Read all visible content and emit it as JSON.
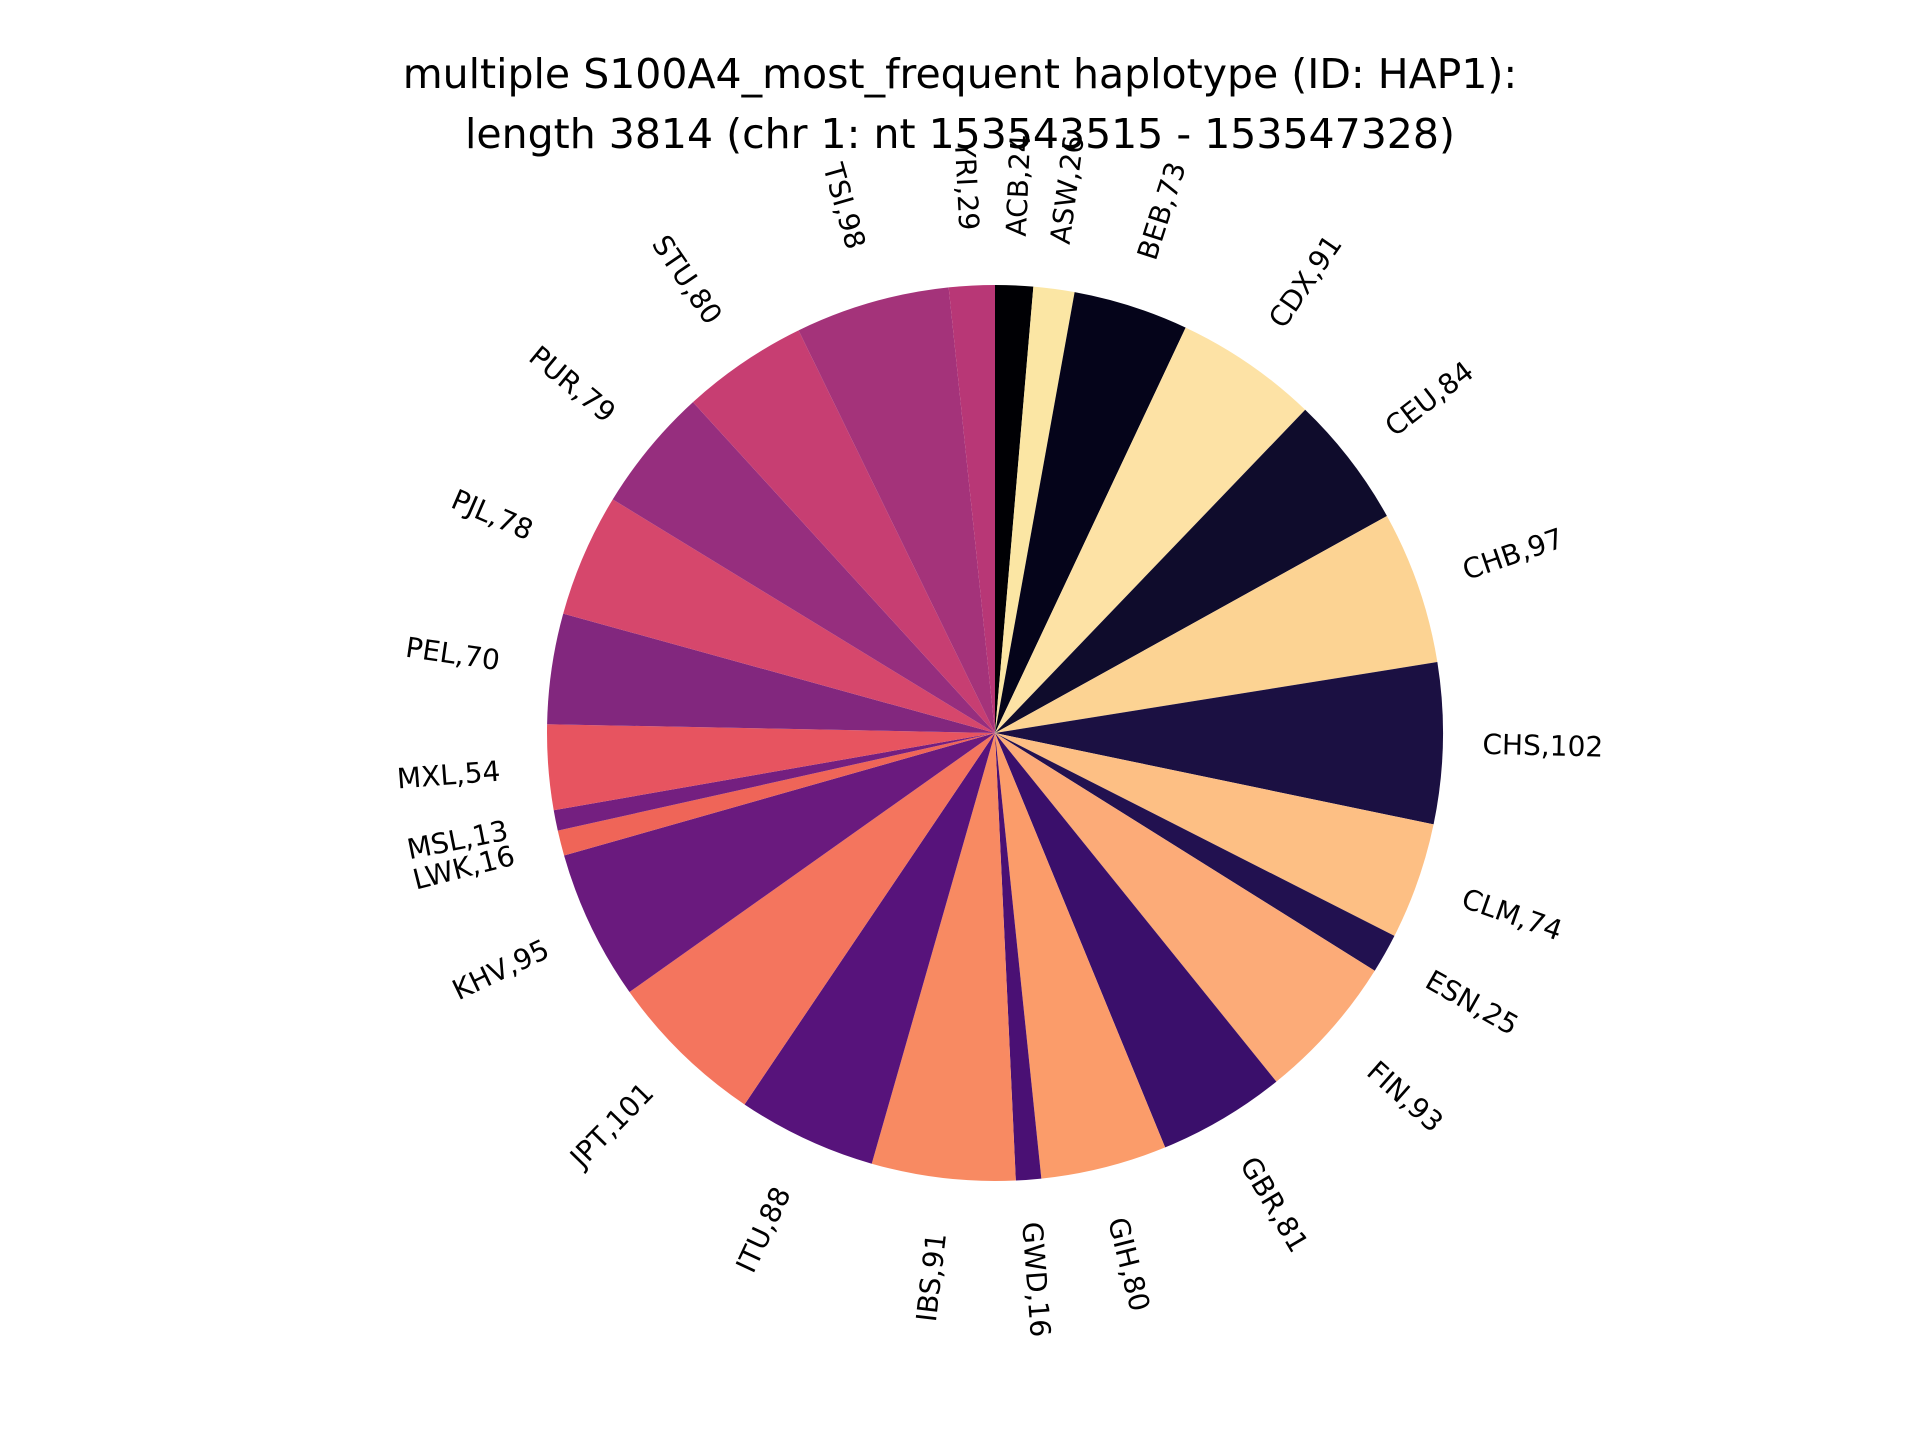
{
  "chart_data": {
    "type": "pie",
    "title_lines": [
      "multiple S100A4_most_frequent haplotype (ID: HAP1):",
      "length 3814 (chr 1: nt 153543515 - 153547328)"
    ],
    "start": "top",
    "direction": "clockwise",
    "slices": [
      {
        "name": "ACB",
        "value": 24,
        "label": "ACB,24",
        "color": "#000004"
      },
      {
        "name": "ASW",
        "value": 26,
        "label": "ASW,26",
        "color": "#fbe6a4"
      },
      {
        "name": "BEB",
        "value": 73,
        "label": "BEB,73",
        "color": "#05041a"
      },
      {
        "name": "CDX",
        "value": 91,
        "label": "CDX,91",
        "color": "#fde2a5"
      },
      {
        "name": "CEU",
        "value": 84,
        "label": "CEU,84",
        "color": "#0f0c2c"
      },
      {
        "name": "CHB",
        "value": 97,
        "label": "CHB,97",
        "color": "#fcd393"
      },
      {
        "name": "CHS",
        "value": 102,
        "label": "CHS,102",
        "color": "#1b1042"
      },
      {
        "name": "CLM",
        "value": 74,
        "label": "CLM,74",
        "color": "#fdbf84"
      },
      {
        "name": "ESN",
        "value": 25,
        "label": "ESN,25",
        "color": "#221150"
      },
      {
        "name": "FIN",
        "value": 93,
        "label": "FIN,93",
        "color": "#fcab78"
      },
      {
        "name": "GBR",
        "value": 81,
        "label": "GBR,81",
        "color": "#3a0f6b"
      },
      {
        "name": "GIH",
        "value": 80,
        "label": "GIH,80",
        "color": "#fb9c6a"
      },
      {
        "name": "GWD",
        "value": 16,
        "label": "GWD,16",
        "color": "#4a1074"
      },
      {
        "name": "IBS",
        "value": 91,
        "label": "IBS,91",
        "color": "#f88a62"
      },
      {
        "name": "ITU",
        "value": 88,
        "label": "ITU,88",
        "color": "#57137b"
      },
      {
        "name": "JPT",
        "value": 101,
        "label": "JPT,101",
        "color": "#f4755e"
      },
      {
        "name": "KHV",
        "value": 95,
        "label": "KHV,95",
        "color": "#6a1a7e"
      },
      {
        "name": "LWK",
        "value": 16,
        "label": "LWK,16",
        "color": "#ef6558"
      },
      {
        "name": "MSL",
        "value": 13,
        "label": "MSL,13",
        "color": "#741f80"
      },
      {
        "name": "MXL",
        "value": 54,
        "label": "MXL,54",
        "color": "#e75460"
      },
      {
        "name": "PEL",
        "value": 70,
        "label": "PEL,70",
        "color": "#82277e"
      },
      {
        "name": "PJL",
        "value": 78,
        "label": "PJL,78",
        "color": "#d6476c"
      },
      {
        "name": "PUR",
        "value": 79,
        "label": "PUR,79",
        "color": "#962e7e"
      },
      {
        "name": "STU",
        "value": 80,
        "label": "STU,80",
        "color": "#c73e72"
      },
      {
        "name": "TSI",
        "value": 98,
        "label": "TSI,98",
        "color": "#a4337a"
      },
      {
        "name": "YRI",
        "value": 29,
        "label": "YRI,29",
        "color": "#b83776"
      }
    ]
  }
}
